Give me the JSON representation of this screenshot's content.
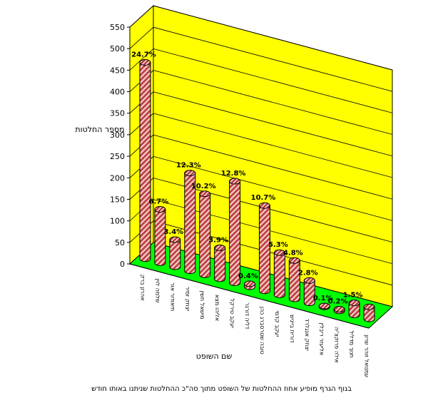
{
  "chart_data": {
    "type": "bar",
    "ylabel": "מספר החלטות",
    "xlabel": "שם השופט",
    "ylim": [
      0,
      550
    ],
    "yticks": [
      0,
      50,
      100,
      150,
      200,
      250,
      300,
      350,
      400,
      450,
      500,
      550
    ],
    "grid": true,
    "categories": [
      "אהרון ברק",
      "שלמה לוין",
      "תיאודור אור",
      "יצחק זמיר",
      "מישאל חשין",
      "אליהו מצא",
      "יעקב טירקל",
      "דליה דורנר",
      "טובה שטרסברג כהן",
      "יעקב קדמי",
      "דורית בייניש",
      "יצחק אנגלרד",
      "אליעזר ריבלין",
      "אילה פרוקצ'יה",
      "חנוך מדליל",
      "עמנואל זוהר שרון"
    ],
    "values": [
      456,
      124,
      63,
      227,
      188,
      72,
      236,
      7,
      198,
      98,
      89,
      52,
      2,
      4,
      28,
      28
    ],
    "labels": [
      "24.7%",
      "6.7%",
      "3.4%",
      "12.3%",
      "10.2%",
      "3.9%",
      "12.8%",
      "0.4%",
      "10.7%",
      "5.3%",
      "4.8%",
      "2.8%",
      "0.1%",
      "0.2%",
      "1.5%",
      ""
    ],
    "colors": {
      "wall": "#ffff00",
      "floor": "#00ff00",
      "bar": "#c04040",
      "bar_stripe": "#f0c8c8"
    }
  },
  "footnote": "בגוף הגרף מופיע אחוז ההחלטות של השופט מתוך סה\"כ ההחלטות שניתנו באותו חודש"
}
